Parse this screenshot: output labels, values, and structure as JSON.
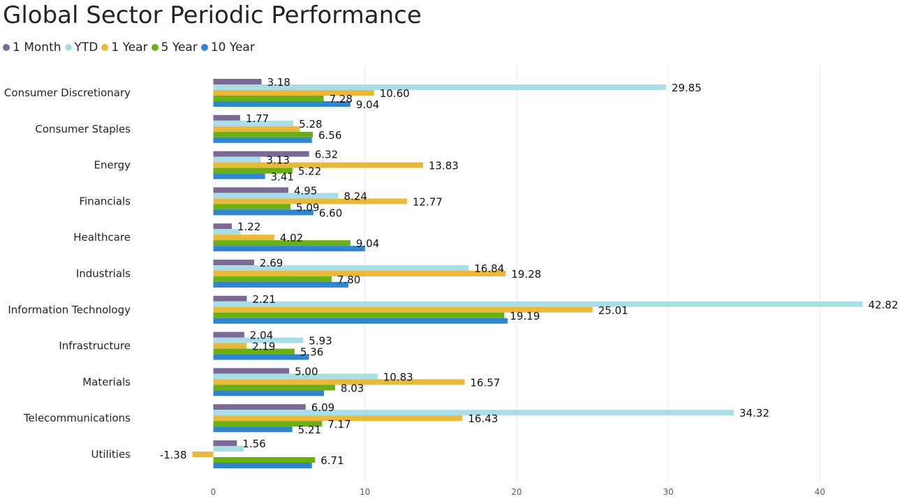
{
  "chart_data": {
    "type": "bar",
    "orientation": "horizontal",
    "title": "Global Sector Periodic Performance",
    "categories": [
      "Consumer Discretionary",
      "Consumer Staples",
      "Energy",
      "Financials",
      "Healthcare",
      "Industrials",
      "Information Technology",
      "Infrastructure",
      "Materials",
      "Telecommunications",
      "Utilities"
    ],
    "series": [
      {
        "name": "1 Month",
        "color": "#7a6a95",
        "values": [
          3.18,
          1.77,
          6.32,
          4.95,
          1.22,
          2.69,
          2.21,
          2.04,
          5.0,
          6.09,
          1.56
        ]
      },
      {
        "name": "YTD",
        "color": "#aadde6",
        "values": [
          29.85,
          5.28,
          3.13,
          8.24,
          1.8,
          16.84,
          42.82,
          5.93,
          10.83,
          34.32,
          2.0
        ]
      },
      {
        "name": "1 Year",
        "color": "#e8b93a",
        "values": [
          10.6,
          5.7,
          13.83,
          12.77,
          4.02,
          19.28,
          25.01,
          2.19,
          16.57,
          16.43,
          -1.38
        ]
      },
      {
        "name": "5 Year",
        "color": "#6aaf14",
        "values": [
          7.28,
          6.56,
          5.22,
          5.09,
          9.04,
          7.8,
          19.19,
          5.36,
          8.03,
          7.17,
          6.71
        ]
      },
      {
        "name": "10 Year",
        "color": "#2f86cf",
        "values": [
          9.04,
          6.5,
          3.41,
          6.6,
          10.0,
          8.9,
          19.4,
          6.3,
          7.3,
          5.21,
          6.5
        ]
      }
    ],
    "data_labels": [
      [
        "3.18",
        "29.85",
        "10.60",
        "7.28",
        "9.04"
      ],
      [
        "1.77",
        "5.28",
        "",
        "6.56",
        ""
      ],
      [
        "6.32",
        "3.13",
        "13.83",
        "5.22",
        "3.41"
      ],
      [
        "4.95",
        "8.24",
        "12.77",
        "5.09",
        "6.60"
      ],
      [
        "1.22",
        "",
        "4.02",
        "9.04",
        ""
      ],
      [
        "2.69",
        "16.84",
        "19.28",
        "7.80",
        ""
      ],
      [
        "2.21",
        "42.82",
        "25.01",
        "19.19",
        ""
      ],
      [
        "2.04",
        "5.93",
        "2.19",
        "5.36",
        ""
      ],
      [
        "5.00",
        "10.83",
        "16.57",
        "8.03",
        ""
      ],
      [
        "6.09",
        "34.32",
        "16.43",
        "7.17",
        "5.21"
      ],
      [
        "1.56",
        "",
        "-1.38",
        "6.71",
        ""
      ]
    ],
    "xlim": [
      -1.5,
      43
    ],
    "xticks": [
      "0",
      "10",
      "20",
      "30",
      "40"
    ],
    "grid": true,
    "legend_position": "top-left"
  }
}
